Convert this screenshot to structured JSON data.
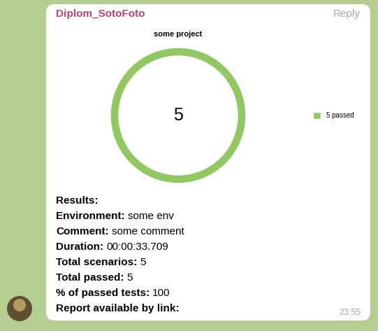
{
  "header": {
    "sender": "Diplom_SotoFoto",
    "action": "Reply"
  },
  "chart_data": {
    "type": "donut",
    "title": "some project",
    "categories": [
      "5 passed"
    ],
    "values": [
      5
    ],
    "colors": [
      "#92c862"
    ],
    "total": 5,
    "legend": "center left"
  },
  "message": {
    "lines": [
      {
        "label": "Results:"
      },
      {
        "label": "Environment:",
        "value": "some env"
      },
      {
        "label": "Comment:",
        "value": "some comment"
      },
      {
        "label": "Duration:",
        "value": "00:00:33.709"
      },
      {
        "label": "Total scenarios:",
        "value": 5
      },
      {
        "label": "Total passed:",
        "value": 5
      },
      {
        "label": "% of passed tests:",
        "value": 100
      },
      {
        "label": "Report available by link:"
      }
    ]
  },
  "time": "23:55"
}
